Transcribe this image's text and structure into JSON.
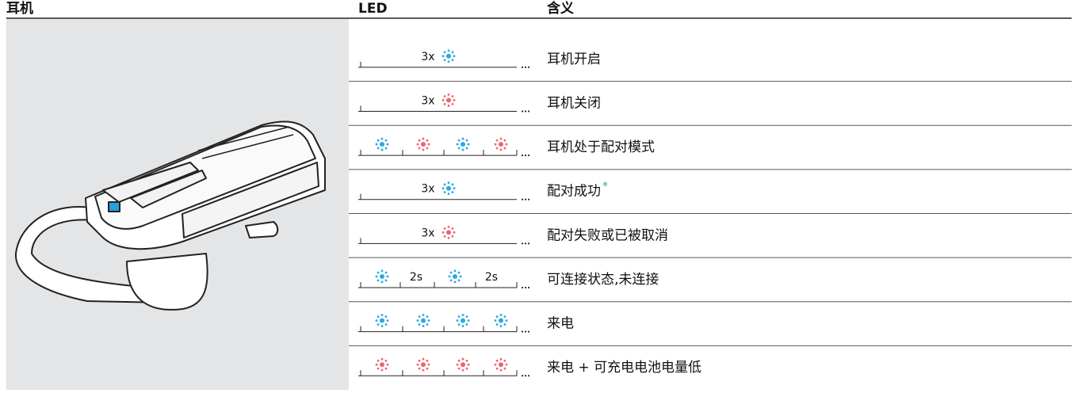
{
  "header": {
    "headset": "耳机",
    "led": "LED",
    "meaning": "含义"
  },
  "rows": [
    {
      "led_labels": [
        "3x"
      ],
      "meaning": "耳机开启"
    },
    {
      "led_labels": [
        "3x"
      ],
      "meaning": "耳机关闭"
    },
    {
      "meaning": "耳机处于配对模式"
    },
    {
      "led_labels": [
        "3x"
      ],
      "meaning": "配对成功",
      "note": "*"
    },
    {
      "led_labels": [
        "3x"
      ],
      "meaning": "配对失败或已被取消"
    },
    {
      "led_labels": [
        "2s",
        "2s"
      ],
      "meaning": "可连接状态,未连接"
    },
    {
      "meaning": "来电"
    },
    {
      "meaning": "来电 + 可充电电池电量低"
    }
  ]
}
